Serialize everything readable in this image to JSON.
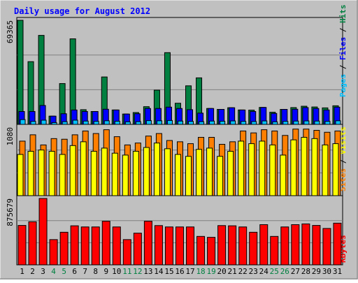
{
  "chart_data": {
    "type": "bar",
    "title": "Daily usage for August 2012",
    "categories": [
      "1",
      "2",
      "3",
      "4",
      "5",
      "6",
      "7",
      "8",
      "9",
      "10",
      "11",
      "12",
      "13",
      "14",
      "15",
      "16",
      "17",
      "18",
      "19",
      "20",
      "21",
      "22",
      "23",
      "24",
      "25",
      "26",
      "27",
      "28",
      "29",
      "30",
      "31"
    ],
    "weekend_days": [
      "4",
      "5",
      "11",
      "12",
      "18",
      "19",
      "25",
      "26"
    ],
    "grid": true,
    "colors": {
      "background": "#c0c0c0",
      "title": "#0000ff",
      "hits": "#008040",
      "files": "#0000ff",
      "pages": "#00c0ff",
      "visits": "#ffff00",
      "sites": "#ff8000",
      "kbytes": "#ff0000",
      "weekday_label": "#000000",
      "weekend_label": "#008040"
    },
    "panels": [
      {
        "id": "hits-files-pages",
        "ymax_label": "69365",
        "ylim": [
          0,
          69365
        ],
        "ylabel_parts": [
          {
            "text": "Pages",
            "color": "#00c0ff"
          },
          {
            "text": " / ",
            "color": "#000000"
          },
          {
            "text": "Files",
            "color": "#0000ff"
          },
          {
            "text": " / ",
            "color": "#000000"
          },
          {
            "text": "Hits",
            "color": "#008040"
          }
        ],
        "series": [
          {
            "name": "Hits",
            "color": "#008040",
            "values": [
              69365,
              41800,
              59300,
              5500,
              27200,
              57000,
              9800,
              8600,
              31600,
              9600,
              6900,
              7900,
              11800,
              22800,
              47800,
              14100,
              25700,
              31000,
              10600,
              10000,
              11100,
              9600,
              9500,
              11300,
              8100,
              10000,
              11200,
              12100,
              11600,
              11000,
              12400
            ]
          },
          {
            "name": "Files",
            "color": "#0000ff",
            "values": [
              8600,
              8600,
              12600,
              5500,
              7100,
              9600,
              8600,
              8600,
              10100,
              9600,
              6900,
              7100,
              10600,
              10600,
              11500,
              10600,
              9800,
              7500,
              10600,
              10000,
              11100,
              9600,
              8600,
              11300,
              7300,
              10000,
              10100,
              11200,
              10600,
              9600,
              11500
            ]
          },
          {
            "name": "Pages",
            "color": "#00c0ff",
            "values": [
              3200,
              2000,
              2800,
              1200,
              1800,
              2800,
              2200,
              2000,
              2400,
              2100,
              1700,
              1800,
              2500,
              2400,
              2600,
              2200,
              2000,
              1800,
              2200,
              2100,
              2300,
              2000,
              1900,
              2300,
              1700,
              2000,
              2200,
              2300,
              2200,
              2000,
              2400
            ]
          }
        ]
      },
      {
        "id": "sites-visits",
        "ymax_label": "1080",
        "ylim": [
          0,
          1080
        ],
        "ylabel_parts": [
          {
            "text": "Sites",
            "color": "#ff8000"
          },
          {
            "text": " / ",
            "color": "#000000"
          },
          {
            "text": "Visits",
            "color": "#ffff00"
          }
        ],
        "series": [
          {
            "name": "Sites",
            "color": "#ff8000",
            "values": [
              860,
              960,
              800,
              900,
              890,
              960,
              1020,
              980,
              1040,
              930,
              800,
              830,
              940,
              980,
              870,
              850,
              820,
              920,
              920,
              810,
              850,
              1020,
              990,
              1040,
              1020,
              950,
              1050,
              1050,
              1030,
              1000,
              1020
            ]
          },
          {
            "name": "Visits",
            "color": "#ffff00",
            "values": [
              650,
              700,
              720,
              700,
              650,
              790,
              850,
              700,
              750,
              670,
              640,
              700,
              760,
              830,
              740,
              650,
              620,
              730,
              750,
              620,
              700,
              860,
              820,
              860,
              800,
              640,
              880,
              920,
              900,
              800,
              820
            ]
          }
        ]
      },
      {
        "id": "kbytes",
        "ymax_label": "875679",
        "ylim": [
          0,
          875679
        ],
        "ylabel_parts": [
          {
            "text": "KBytes",
            "color": "#ff0000"
          }
        ],
        "series": [
          {
            "name": "KBytes",
            "color": "#ff0000",
            "values": [
              520000,
              568000,
              875679,
              333000,
              430000,
              515000,
              500000,
              500000,
              575000,
              500000,
              333000,
              418000,
              575000,
              518000,
              500000,
              500000,
              500000,
              375000,
              363000,
              518000,
              515000,
              500000,
              430000,
              530000,
              375000,
              500000,
              530000,
              540000,
              520000,
              480000,
              550000
            ]
          }
        ]
      }
    ]
  }
}
